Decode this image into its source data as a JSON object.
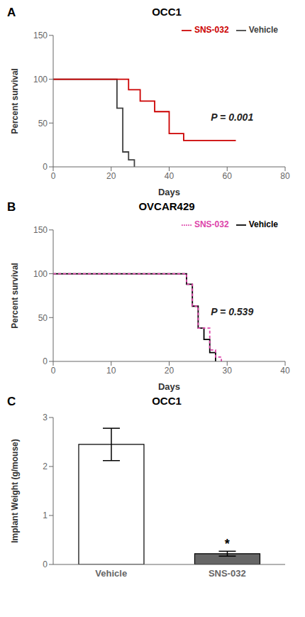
{
  "chart_data": [
    {
      "type": "step",
      "panel_label": "A",
      "title": "OCC1",
      "xlabel": "Days",
      "ylabel": "Percent survival",
      "xlim": [
        0,
        80
      ],
      "ylim": [
        0,
        150
      ],
      "xticks": [
        0,
        20,
        40,
        60,
        80
      ],
      "yticks": [
        0,
        50,
        100,
        150
      ],
      "legend": "upper right",
      "grid": false,
      "annotations": [
        {
          "text": "P = 0.001"
        }
      ],
      "series": [
        {
          "name": "Vehicle",
          "color": "#404040",
          "line_style": "solid",
          "x": [
            0,
            22,
            22,
            24,
            24,
            26,
            26,
            28,
            28
          ],
          "values": [
            100,
            100,
            67,
            67,
            17,
            17,
            8,
            8,
            0
          ]
        },
        {
          "name": "SNS-032",
          "color": "#cc0000",
          "line_style": "solid",
          "x": [
            0,
            26,
            26,
            30,
            30,
            35,
            35,
            40,
            40,
            45,
            45,
            63,
            63
          ],
          "values": [
            100,
            100,
            88,
            88,
            75,
            75,
            63,
            63,
            38,
            38,
            30,
            30,
            30
          ]
        }
      ]
    },
    {
      "type": "step",
      "panel_label": "B",
      "title": "OVCAR429",
      "xlabel": "Days",
      "ylabel": "Percent survival",
      "xlim": [
        0,
        40
      ],
      "ylim": [
        0,
        150
      ],
      "xticks": [
        0,
        10,
        20,
        30,
        40
      ],
      "yticks": [
        0,
        50,
        100,
        150
      ],
      "legend": "upper right",
      "grid": false,
      "annotations": [
        {
          "text": "P = 0.539"
        }
      ],
      "series": [
        {
          "name": "Vehicle",
          "color": "#000000",
          "line_style": "solid",
          "x": [
            0,
            23,
            23,
            24,
            24,
            25,
            25,
            26,
            26,
            27,
            27,
            28,
            28
          ],
          "values": [
            100,
            100,
            88,
            88,
            63,
            63,
            38,
            38,
            25,
            25,
            10,
            10,
            0
          ]
        },
        {
          "name": "SNS-032",
          "color": "#dd44aa",
          "line_style": "dashed",
          "x": [
            0,
            23,
            23,
            24,
            24,
            25,
            25,
            27,
            27,
            28,
            28,
            29,
            29
          ],
          "values": [
            100,
            100,
            88,
            88,
            63,
            63,
            38,
            38,
            13,
            13,
            5,
            5,
            0
          ]
        }
      ]
    },
    {
      "type": "bar",
      "panel_label": "C",
      "title": "OCC1",
      "ylabel": "Implant Weight (g/mouse)",
      "categories": [
        "Vehicle",
        "SNS-032"
      ],
      "values": [
        2.45,
        0.22
      ],
      "errors": [
        0.33,
        0.05
      ],
      "colors": [
        "#ffffff",
        "#666666"
      ],
      "ylim": [
        0,
        3
      ],
      "yticks": [
        0,
        1,
        2,
        3
      ],
      "grid": false,
      "annotations": [
        {
          "text": "*",
          "category": "SNS-032"
        }
      ]
    }
  ]
}
